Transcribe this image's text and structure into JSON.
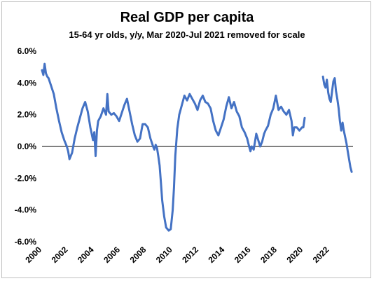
{
  "chart_data": {
    "type": "line",
    "title": "Real GDP per capita",
    "subtitle": "15-64 yr olds, y/y, Mar 2020-Jul 2021 removed for scale",
    "xlabel": "",
    "ylabel": "",
    "x_tick_labels": [
      "2000",
      "2002",
      "2004",
      "2006",
      "2008",
      "2010",
      "2012",
      "2014",
      "2016",
      "2018",
      "2020",
      "2022"
    ],
    "y_tick_labels": [
      "-6.0%",
      "-4.0%",
      "-2.0%",
      "0.0%",
      "2.0%",
      "4.0%",
      "6.0%"
    ],
    "ylim": [
      -6,
      6
    ],
    "xlim": [
      2000,
      2023.8
    ],
    "grid": false,
    "color": "#4472c4",
    "series": [
      {
        "name": "",
        "segments": [
          [
            [
              2000.0,
              4.8
            ],
            [
              2000.1,
              4.5
            ],
            [
              2000.2,
              5.2
            ],
            [
              2000.3,
              4.6
            ],
            [
              2000.4,
              4.4
            ],
            [
              2000.5,
              4.3
            ],
            [
              2000.7,
              3.8
            ],
            [
              2000.9,
              3.3
            ],
            [
              2001.1,
              2.4
            ],
            [
              2001.3,
              1.6
            ],
            [
              2001.5,
              0.9
            ],
            [
              2001.7,
              0.4
            ],
            [
              2001.9,
              0.0
            ],
            [
              2002.0,
              -0.3
            ],
            [
              2002.1,
              -0.8
            ],
            [
              2002.3,
              -0.4
            ],
            [
              2002.5,
              0.5
            ],
            [
              2002.7,
              1.2
            ],
            [
              2002.9,
              1.8
            ],
            [
              2003.1,
              2.4
            ],
            [
              2003.3,
              2.8
            ],
            [
              2003.5,
              2.2
            ],
            [
              2003.7,
              1.2
            ],
            [
              2003.9,
              0.4
            ],
            [
              2004.0,
              0.9
            ],
            [
              2004.1,
              -0.6
            ],
            [
              2004.2,
              1.0
            ],
            [
              2004.3,
              1.6
            ],
            [
              2004.5,
              1.9
            ],
            [
              2004.7,
              2.4
            ],
            [
              2004.9,
              2.0
            ],
            [
              2005.0,
              3.3
            ],
            [
              2005.1,
              2.2
            ],
            [
              2005.3,
              2.0
            ],
            [
              2005.5,
              2.1
            ],
            [
              2005.7,
              1.9
            ],
            [
              2005.9,
              1.6
            ],
            [
              2006.1,
              2.1
            ],
            [
              2006.3,
              2.6
            ],
            [
              2006.5,
              3.0
            ],
            [
              2006.7,
              2.2
            ],
            [
              2006.9,
              1.4
            ],
            [
              2007.1,
              0.7
            ],
            [
              2007.3,
              0.3
            ],
            [
              2007.5,
              0.5
            ],
            [
              2007.7,
              1.4
            ],
            [
              2007.9,
              1.4
            ],
            [
              2008.1,
              1.2
            ],
            [
              2008.3,
              0.5
            ],
            [
              2008.5,
              0.0
            ],
            [
              2008.6,
              -0.2
            ],
            [
              2008.7,
              0.1
            ],
            [
              2008.8,
              -0.1
            ],
            [
              2008.9,
              -0.6
            ],
            [
              2009.0,
              -1.2
            ],
            [
              2009.1,
              -2.3
            ],
            [
              2009.2,
              -3.4
            ],
            [
              2009.35,
              -4.4
            ],
            [
              2009.5,
              -5.1
            ],
            [
              2009.7,
              -5.3
            ],
            [
              2009.85,
              -5.2
            ],
            [
              2010.0,
              -4.0
            ],
            [
              2010.1,
              -2.6
            ],
            [
              2010.2,
              -0.6
            ],
            [
              2010.35,
              1.1
            ],
            [
              2010.5,
              2.0
            ],
            [
              2010.7,
              2.6
            ],
            [
              2010.9,
              3.2
            ],
            [
              2011.1,
              2.9
            ],
            [
              2011.3,
              3.3
            ],
            [
              2011.5,
              3.0
            ],
            [
              2011.7,
              2.7
            ],
            [
              2011.9,
              2.3
            ],
            [
              2012.1,
              2.9
            ],
            [
              2012.3,
              3.2
            ],
            [
              2012.5,
              2.8
            ],
            [
              2012.7,
              2.7
            ],
            [
              2012.9,
              2.4
            ],
            [
              2013.1,
              1.6
            ],
            [
              2013.3,
              1.0
            ],
            [
              2013.5,
              0.7
            ],
            [
              2013.7,
              1.2
            ],
            [
              2013.9,
              1.7
            ],
            [
              2014.1,
              2.5
            ],
            [
              2014.3,
              3.1
            ],
            [
              2014.5,
              2.4
            ],
            [
              2014.7,
              2.8
            ],
            [
              2014.9,
              2.2
            ],
            [
              2015.1,
              1.9
            ],
            [
              2015.3,
              1.2
            ],
            [
              2015.5,
              0.9
            ],
            [
              2015.7,
              0.5
            ],
            [
              2015.85,
              0.0
            ],
            [
              2015.95,
              -0.3
            ],
            [
              2016.05,
              0.0
            ],
            [
              2016.2,
              -0.2
            ],
            [
              2016.3,
              0.3
            ],
            [
              2016.4,
              0.8
            ],
            [
              2016.55,
              0.4
            ],
            [
              2016.7,
              0.0
            ],
            [
              2016.85,
              0.3
            ],
            [
              2017.0,
              0.8
            ],
            [
              2017.1,
              1.0
            ],
            [
              2017.3,
              1.3
            ],
            [
              2017.5,
              2.0
            ],
            [
              2017.7,
              2.4
            ],
            [
              2017.9,
              3.2
            ],
            [
              2018.1,
              2.3
            ],
            [
              2018.3,
              2.5
            ],
            [
              2018.5,
              2.2
            ],
            [
              2018.7,
              2.0
            ],
            [
              2018.9,
              2.3
            ],
            [
              2019.1,
              1.6
            ],
            [
              2019.2,
              0.7
            ],
            [
              2019.3,
              1.2
            ],
            [
              2019.5,
              1.2
            ],
            [
              2019.7,
              1.0
            ],
            [
              2019.9,
              1.2
            ],
            [
              2020.0,
              1.2
            ],
            [
              2020.1,
              1.8
            ]
          ],
          [
            [
              2021.5,
              4.4
            ],
            [
              2021.6,
              3.9
            ],
            [
              2021.7,
              3.7
            ],
            [
              2021.8,
              4.2
            ],
            [
              2021.9,
              3.4
            ],
            [
              2022.0,
              3.0
            ],
            [
              2022.1,
              2.8
            ],
            [
              2022.2,
              3.5
            ],
            [
              2022.3,
              4.1
            ],
            [
              2022.4,
              4.3
            ],
            [
              2022.5,
              3.5
            ],
            [
              2022.6,
              3.0
            ],
            [
              2022.7,
              2.4
            ],
            [
              2022.8,
              1.6
            ],
            [
              2022.9,
              1.0
            ],
            [
              2023.0,
              1.5
            ],
            [
              2023.1,
              1.0
            ],
            [
              2023.2,
              0.6
            ],
            [
              2023.3,
              0.2
            ],
            [
              2023.4,
              -0.3
            ],
            [
              2023.5,
              -0.8
            ],
            [
              2023.6,
              -1.3
            ],
            [
              2023.7,
              -1.6
            ]
          ]
        ]
      }
    ]
  }
}
